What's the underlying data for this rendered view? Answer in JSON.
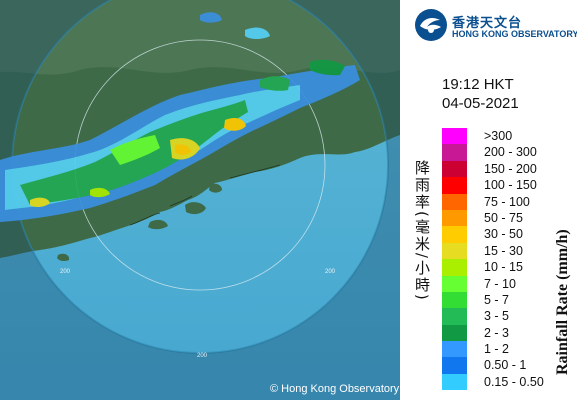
{
  "header": {
    "org_name_zh": "香港天文台",
    "org_name_en": "HONG KONG OBSERVATORY"
  },
  "timestamp": {
    "time": "19:12 HKT",
    "date": "04-05-2021"
  },
  "legend": {
    "title_zh": "降雨率(毫米/小時)",
    "title_en": "Rainfall Rate (mm/h)",
    "items": [
      {
        "label": ">300",
        "color": "#ff00ff"
      },
      {
        "label": "200 - 300",
        "color": "#c81896"
      },
      {
        "label": "150 - 200",
        "color": "#cc0033"
      },
      {
        "label": "100 - 150",
        "color": "#ff0000"
      },
      {
        "label": "75 - 100",
        "color": "#ff6600"
      },
      {
        "label": "50 - 75",
        "color": "#ff9900"
      },
      {
        "label": "30 - 50",
        "color": "#ffcc00"
      },
      {
        "label": "15 - 30",
        "color": "#e6dd22"
      },
      {
        "label": "10 - 15",
        "color": "#aaee00"
      },
      {
        "label": "7 - 10",
        "color": "#66ff33"
      },
      {
        "label": "5 - 7",
        "color": "#33dd33"
      },
      {
        "label": "3 - 5",
        "color": "#22bb55"
      },
      {
        "label": "2 - 3",
        "color": "#119944"
      },
      {
        "label": "1 - 2",
        "color": "#3399ff"
      },
      {
        "label": "0.50 - 1",
        "color": "#1177ee"
      },
      {
        "label": "0.15 - 0.50",
        "color": "#33ccff"
      }
    ]
  },
  "map": {
    "range_ring_labels": [
      "200",
      "200",
      "200"
    ],
    "copyright": "© Hong Kong Observatory"
  }
}
